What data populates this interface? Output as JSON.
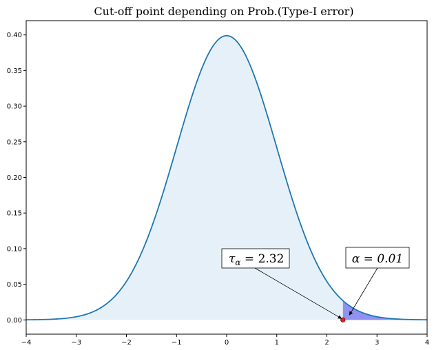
{
  "chart_data": {
    "type": "area",
    "title": "Cut-off point depending on Prob.(Type-I error)",
    "xlabel": "",
    "ylabel": "",
    "xlim": [
      -4,
      4
    ],
    "ylim": [
      -0.02,
      0.42
    ],
    "x_ticks": [
      -4,
      -3,
      -2,
      -1,
      0,
      1,
      2,
      3,
      4
    ],
    "x_tick_labels": [
      "−4",
      "−3",
      "−2",
      "−1",
      "0",
      "1",
      "2",
      "3",
      "4"
    ],
    "y_ticks": [
      0.0,
      0.05,
      0.1,
      0.15,
      0.2,
      0.25,
      0.3,
      0.35,
      0.4
    ],
    "y_tick_labels": [
      "0.00",
      "0.05",
      "0.10",
      "0.15",
      "0.20",
      "0.25",
      "0.30",
      "0.35",
      "0.40"
    ],
    "grid": false,
    "series": [
      {
        "curve": "standard normal pdf",
        "x": [
          -4,
          -3.5,
          -3,
          -2.5,
          -2,
          -1.5,
          -1,
          -0.5,
          0,
          0.5,
          1,
          1.5,
          2,
          2.32,
          2.5,
          3,
          3.5,
          4
        ],
        "y": [
          0.0001,
          0.0009,
          0.0044,
          0.0175,
          0.054,
          0.1295,
          0.242,
          0.3521,
          0.3989,
          0.3521,
          0.242,
          0.1295,
          0.054,
          0.027,
          0.0175,
          0.0044,
          0.0009,
          0.0001
        ],
        "color": "#1f77b4",
        "fill_color": "#e6f0f8"
      }
    ],
    "shaded_tail": {
      "from": 2.32,
      "to": 4,
      "color": "#8080f0"
    },
    "cutoff_point": {
      "x": 2.32,
      "y": 0,
      "color": "#d62728"
    },
    "annotations": [
      {
        "label_prefix": "τ",
        "label_sub": "α",
        "label_rest": " = 2.32",
        "points_to": [
          2.32,
          0
        ]
      },
      {
        "label": "α = 0.01",
        "points_to": [
          2.45,
          0.003
        ]
      }
    ]
  }
}
